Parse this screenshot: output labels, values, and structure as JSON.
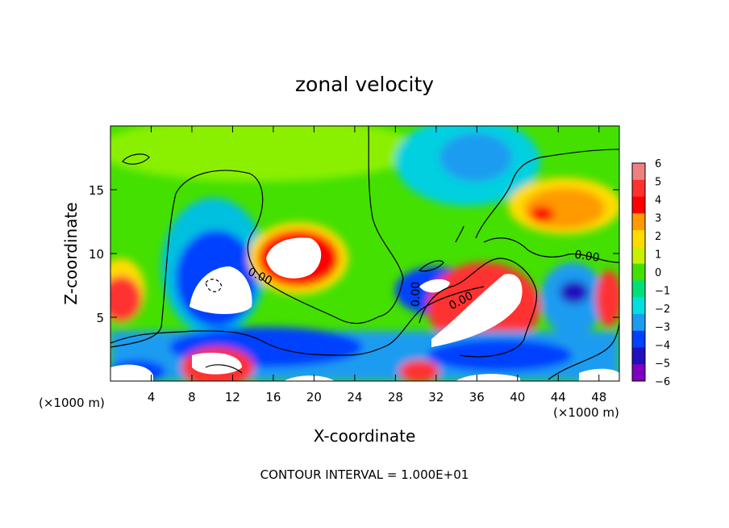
{
  "chart_data": {
    "type": "heatmap",
    "title": "zonal velocity",
    "xlabel": "X-coordinate",
    "ylabel": "Z-coordinate",
    "x_unit_label": "(×1000 m)",
    "x_unit_label_right": "(×1000 m)",
    "footer": "CONTOUR INTERVAL = 1.000E+01",
    "xlim": [
      0,
      50
    ],
    "ylim": [
      0,
      20
    ],
    "x_ticks": [
      4,
      8,
      12,
      16,
      20,
      24,
      28,
      32,
      36,
      40,
      44,
      48
    ],
    "y_ticks": [
      5,
      10,
      15
    ],
    "colorbar": {
      "labels": [
        "6",
        "5",
        "4",
        "3",
        "2",
        "1",
        "0",
        "−1",
        "−2",
        "−3",
        "−4",
        "−5",
        "−6"
      ],
      "colors": [
        "#f08080",
        "#ff3030",
        "#ff0000",
        "#ff9a00",
        "#ffdc00",
        "#c8f000",
        "#44e000",
        "#00e07a",
        "#00e0e0",
        "#1c9cf0",
        "#0040ff",
        "#2010c0",
        "#8000c0"
      ]
    },
    "contour_labels": [
      "0.00",
      "0.00",
      "0.00",
      "0.00"
    ],
    "grid": false
  }
}
